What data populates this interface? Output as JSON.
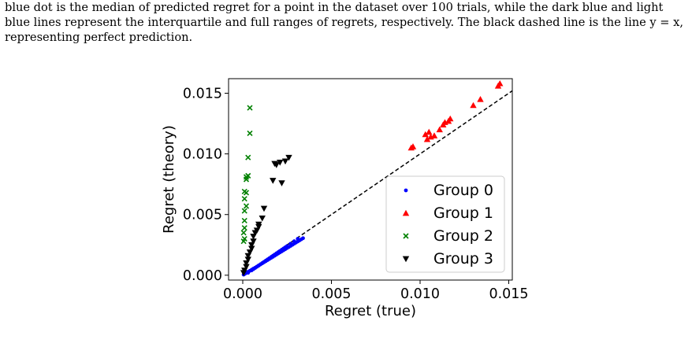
{
  "caption": {
    "line1": "blue dot is the median of predicted regret for a point in the dataset over 100 trials, while the dark blue and light",
    "line2": "blue lines represent the interquartile and full ranges of regrets, respectively. The black dashed line is the line y = x,",
    "line3": "representing perfect prediction."
  },
  "chart_data": {
    "type": "scatter",
    "title": "",
    "xlabel": "Regret (true)",
    "ylabel": "Regret (theory)",
    "xlim": [
      -0.0008,
      0.0152
    ],
    "ylim": [
      -0.0004,
      0.0162
    ],
    "xticks": [
      0.0,
      0.005,
      0.01,
      0.015
    ],
    "xtick_labels": [
      "0.000",
      "0.005",
      "0.010",
      "0.015"
    ],
    "yticks": [
      0.0,
      0.005,
      0.01,
      0.015
    ],
    "ytick_labels": [
      "0.000",
      "0.005",
      "0.010",
      "0.015"
    ],
    "reference_line": {
      "type": "y=x",
      "style": "dashed",
      "color": "#000000"
    },
    "legend": {
      "placement": "lower-right"
    },
    "series": [
      {
        "name": "Group 0",
        "marker": "dot",
        "color": "#0000ff",
        "x": [
          5e-05,
          0.0001,
          0.00015,
          0.0002,
          0.0003,
          0.0004,
          0.0005,
          0.0006,
          0.0007,
          0.0008,
          0.0009,
          0.001,
          0.0011,
          0.0012,
          0.0013,
          0.0014,
          0.0015,
          0.0016,
          0.0017,
          0.0018,
          0.0019,
          0.002,
          0.0021,
          0.0022,
          0.0023,
          0.0024,
          0.0025,
          0.0026,
          0.0027,
          0.0028,
          0.0029,
          0.003,
          0.0031,
          0.0032,
          0.0033,
          0.0034,
          0.0006,
          0.0008,
          0.001,
          0.0012,
          0.0014,
          0.0016,
          0.0018,
          0.002,
          0.0022,
          0.0024,
          0.0003,
          0.0005,
          0.0007,
          0.0009,
          0.0011,
          0.0013,
          0.0015,
          0.0017,
          0.0019,
          0.0021,
          0.0023,
          0.0025,
          0.0027,
          0.0029,
          0.0031
        ],
        "y": [
          5e-05,
          0.0001,
          0.00015,
          0.0002,
          0.00028,
          0.00036,
          0.00045,
          0.00054,
          0.00062,
          0.00071,
          0.0008,
          0.00089,
          0.00098,
          0.00107,
          0.00116,
          0.00125,
          0.00134,
          0.00143,
          0.00152,
          0.00161,
          0.0017,
          0.00179,
          0.00188,
          0.00197,
          0.00206,
          0.00215,
          0.00224,
          0.00233,
          0.00242,
          0.00251,
          0.0026,
          0.00269,
          0.00278,
          0.00287,
          0.00296,
          0.00305,
          0.0005,
          0.0007,
          0.0009,
          0.0011,
          0.0013,
          0.0015,
          0.0017,
          0.0019,
          0.0021,
          0.0023,
          0.0002,
          0.0004,
          0.0006,
          0.0008,
          0.001,
          0.0012,
          0.0014,
          0.0016,
          0.0018,
          0.002,
          0.0022,
          0.0024,
          0.0026,
          0.0028,
          0.003
        ]
      },
      {
        "name": "Group 1",
        "marker": "triangle-up",
        "color": "#ff0000",
        "x": [
          0.0095,
          0.0096,
          0.0103,
          0.0104,
          0.0105,
          0.0106,
          0.0108,
          0.0111,
          0.0113,
          0.0114,
          0.0116,
          0.0117,
          0.013,
          0.0134,
          0.0144,
          0.0145
        ],
        "y": [
          0.0105,
          0.0106,
          0.0116,
          0.0112,
          0.0118,
          0.0114,
          0.0115,
          0.012,
          0.0124,
          0.0126,
          0.0127,
          0.0129,
          0.014,
          0.0145,
          0.0156,
          0.0158
        ]
      },
      {
        "name": "Group 2",
        "marker": "x",
        "color": "#008000",
        "x": [
          0.0004,
          0.0004,
          0.0003,
          0.0003,
          0.0002,
          0.0002,
          0.0001,
          0.0002,
          0.0001,
          0.0002,
          0.0001,
          0.0001,
          0.0001,
          5e-05,
          0.0001,
          5e-05
        ],
        "y": [
          0.0138,
          0.0117,
          0.0097,
          0.0082,
          0.0081,
          0.0079,
          0.0069,
          0.0068,
          0.0063,
          0.0057,
          0.0053,
          0.0045,
          0.0039,
          0.0035,
          0.003,
          0.0028
        ]
      },
      {
        "name": "Group 3",
        "marker": "triangle-down",
        "color": "#000000",
        "x": [
          0.0026,
          0.0024,
          0.0018,
          0.0019,
          0.0021,
          0.0017,
          0.0022,
          0.0012,
          0.0011,
          0.0009,
          0.0009,
          0.0008,
          0.0007,
          0.0006,
          0.0006,
          0.0005,
          0.0005,
          0.0004,
          0.0003,
          0.0003,
          0.0002,
          0.0002,
          0.0001,
          5e-05
        ],
        "y": [
          0.0097,
          0.0094,
          0.0092,
          0.0091,
          0.0093,
          0.0078,
          0.0076,
          0.0055,
          0.0047,
          0.0042,
          0.004,
          0.0037,
          0.0035,
          0.0032,
          0.0028,
          0.0025,
          0.0022,
          0.0019,
          0.0016,
          0.0013,
          0.001,
          0.0007,
          0.0004,
          0.0002
        ]
      }
    ]
  }
}
